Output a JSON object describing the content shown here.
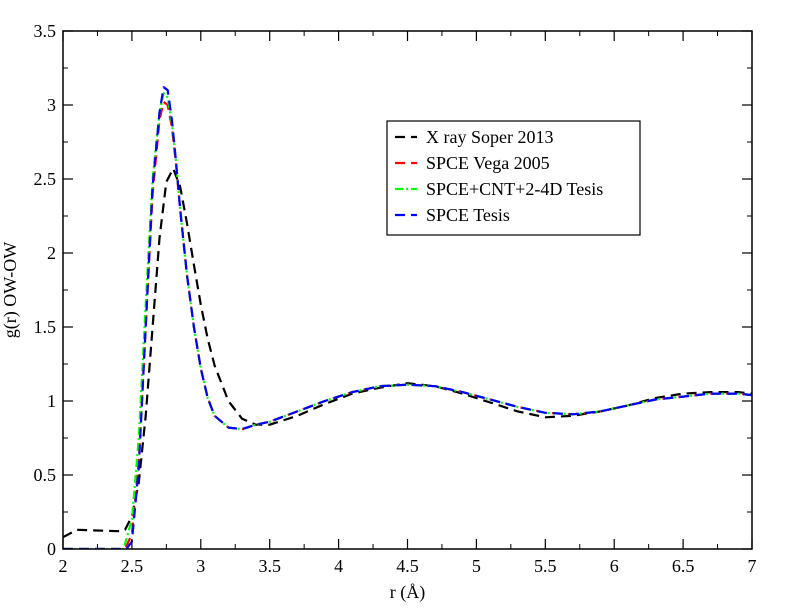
{
  "chart_data": {
    "type": "line",
    "title": "",
    "xlabel": "r (Å)",
    "ylabel": "g(r) OW-OW",
    "xlim": [
      2,
      7
    ],
    "ylim": [
      0,
      3.5
    ],
    "grid": false,
    "legend_position": "top-right",
    "x_ticks": [
      "2",
      "2.5",
      "3",
      "3.5",
      "4",
      "4.5",
      "5",
      "5.5",
      "6",
      "6.5",
      "7"
    ],
    "y_ticks": [
      "0",
      "0.5",
      "1",
      "1.5",
      "2",
      "2.5",
      "3",
      "3.5"
    ],
    "series": [
      {
        "name": "X ray Soper 2013",
        "color": "#000000",
        "dash": "10,6",
        "x": [
          2.0,
          2.1,
          2.4,
          2.45,
          2.5,
          2.55,
          2.6,
          2.65,
          2.7,
          2.75,
          2.8,
          2.85,
          2.9,
          2.95,
          3.0,
          3.05,
          3.1,
          3.2,
          3.3,
          3.4,
          3.5,
          3.7,
          3.9,
          4.1,
          4.3,
          4.5,
          4.7,
          4.9,
          5.1,
          5.3,
          5.5,
          5.7,
          5.9,
          6.1,
          6.3,
          6.5,
          6.7,
          6.9,
          7.0
        ],
        "y": [
          0.08,
          0.13,
          0.12,
          0.13,
          0.22,
          0.45,
          0.9,
          1.5,
          2.1,
          2.48,
          2.57,
          2.45,
          2.2,
          1.92,
          1.65,
          1.42,
          1.24,
          1.0,
          0.88,
          0.84,
          0.84,
          0.9,
          0.98,
          1.05,
          1.09,
          1.12,
          1.1,
          1.05,
          0.99,
          0.93,
          0.89,
          0.9,
          0.93,
          0.97,
          1.02,
          1.05,
          1.06,
          1.06,
          1.05
        ]
      },
      {
        "name": "SPCE Vega 2005",
        "color": "#ff0000",
        "dash": "10,6",
        "x": [
          2.0,
          2.45,
          2.5,
          2.55,
          2.6,
          2.65,
          2.7,
          2.73,
          2.76,
          2.79,
          2.82,
          2.85,
          2.9,
          2.95,
          3.0,
          3.05,
          3.1,
          3.2,
          3.3,
          3.4,
          3.5,
          3.7,
          3.9,
          4.1,
          4.3,
          4.5,
          4.7,
          4.9,
          5.1,
          5.3,
          5.5,
          5.7,
          5.9,
          6.1,
          6.3,
          6.5,
          6.7,
          6.9,
          7.0
        ],
        "y": [
          0.0,
          0.0,
          0.1,
          0.6,
          1.5,
          2.4,
          2.9,
          3.02,
          3.0,
          2.85,
          2.6,
          2.3,
          1.85,
          1.5,
          1.22,
          1.02,
          0.9,
          0.82,
          0.81,
          0.84,
          0.86,
          0.93,
          1.0,
          1.06,
          1.1,
          1.11,
          1.1,
          1.06,
          1.01,
          0.96,
          0.92,
          0.91,
          0.93,
          0.97,
          1.01,
          1.03,
          1.05,
          1.05,
          1.04
        ]
      },
      {
        "name": "SPCE+CNT+2-4D Tesis",
        "color": "#00ff00",
        "dash": "8,3,2,3",
        "x": [
          2.0,
          2.44,
          2.5,
          2.55,
          2.6,
          2.65,
          2.7,
          2.73,
          2.76,
          2.79,
          2.82,
          2.85,
          2.9,
          2.95,
          3.0,
          3.05,
          3.1,
          3.2,
          3.3,
          3.4,
          3.5,
          3.7,
          3.9,
          4.1,
          4.3,
          4.5,
          4.7,
          4.9,
          5.1,
          5.3,
          5.5,
          5.7,
          5.9,
          6.1,
          6.3,
          6.5,
          6.7,
          6.9,
          7.0
        ],
        "y": [
          0.0,
          0.0,
          0.2,
          0.75,
          1.65,
          2.5,
          2.95,
          3.08,
          3.05,
          2.88,
          2.62,
          2.3,
          1.85,
          1.5,
          1.22,
          1.02,
          0.9,
          0.82,
          0.81,
          0.84,
          0.86,
          0.93,
          1.0,
          1.06,
          1.1,
          1.11,
          1.1,
          1.06,
          1.01,
          0.96,
          0.92,
          0.91,
          0.93,
          0.97,
          1.01,
          1.03,
          1.05,
          1.05,
          1.04
        ]
      },
      {
        "name": "SPCE Tesis",
        "color": "#0000ff",
        "dash": "10,6",
        "x": [
          2.0,
          2.46,
          2.5,
          2.55,
          2.6,
          2.65,
          2.7,
          2.73,
          2.76,
          2.79,
          2.82,
          2.85,
          2.9,
          2.95,
          3.0,
          3.05,
          3.1,
          3.2,
          3.3,
          3.4,
          3.5,
          3.7,
          3.9,
          4.1,
          4.3,
          4.5,
          4.7,
          4.9,
          5.1,
          5.3,
          5.5,
          5.7,
          5.9,
          6.1,
          6.3,
          6.5,
          6.7,
          6.9,
          7.0
        ],
        "y": [
          0.0,
          0.0,
          0.05,
          0.55,
          1.5,
          2.45,
          2.95,
          3.12,
          3.1,
          2.9,
          2.62,
          2.3,
          1.85,
          1.5,
          1.22,
          1.02,
          0.9,
          0.82,
          0.81,
          0.84,
          0.86,
          0.93,
          1.0,
          1.06,
          1.1,
          1.11,
          1.1,
          1.06,
          1.01,
          0.96,
          0.92,
          0.91,
          0.93,
          0.97,
          1.01,
          1.03,
          1.05,
          1.05,
          1.04
        ]
      }
    ]
  }
}
